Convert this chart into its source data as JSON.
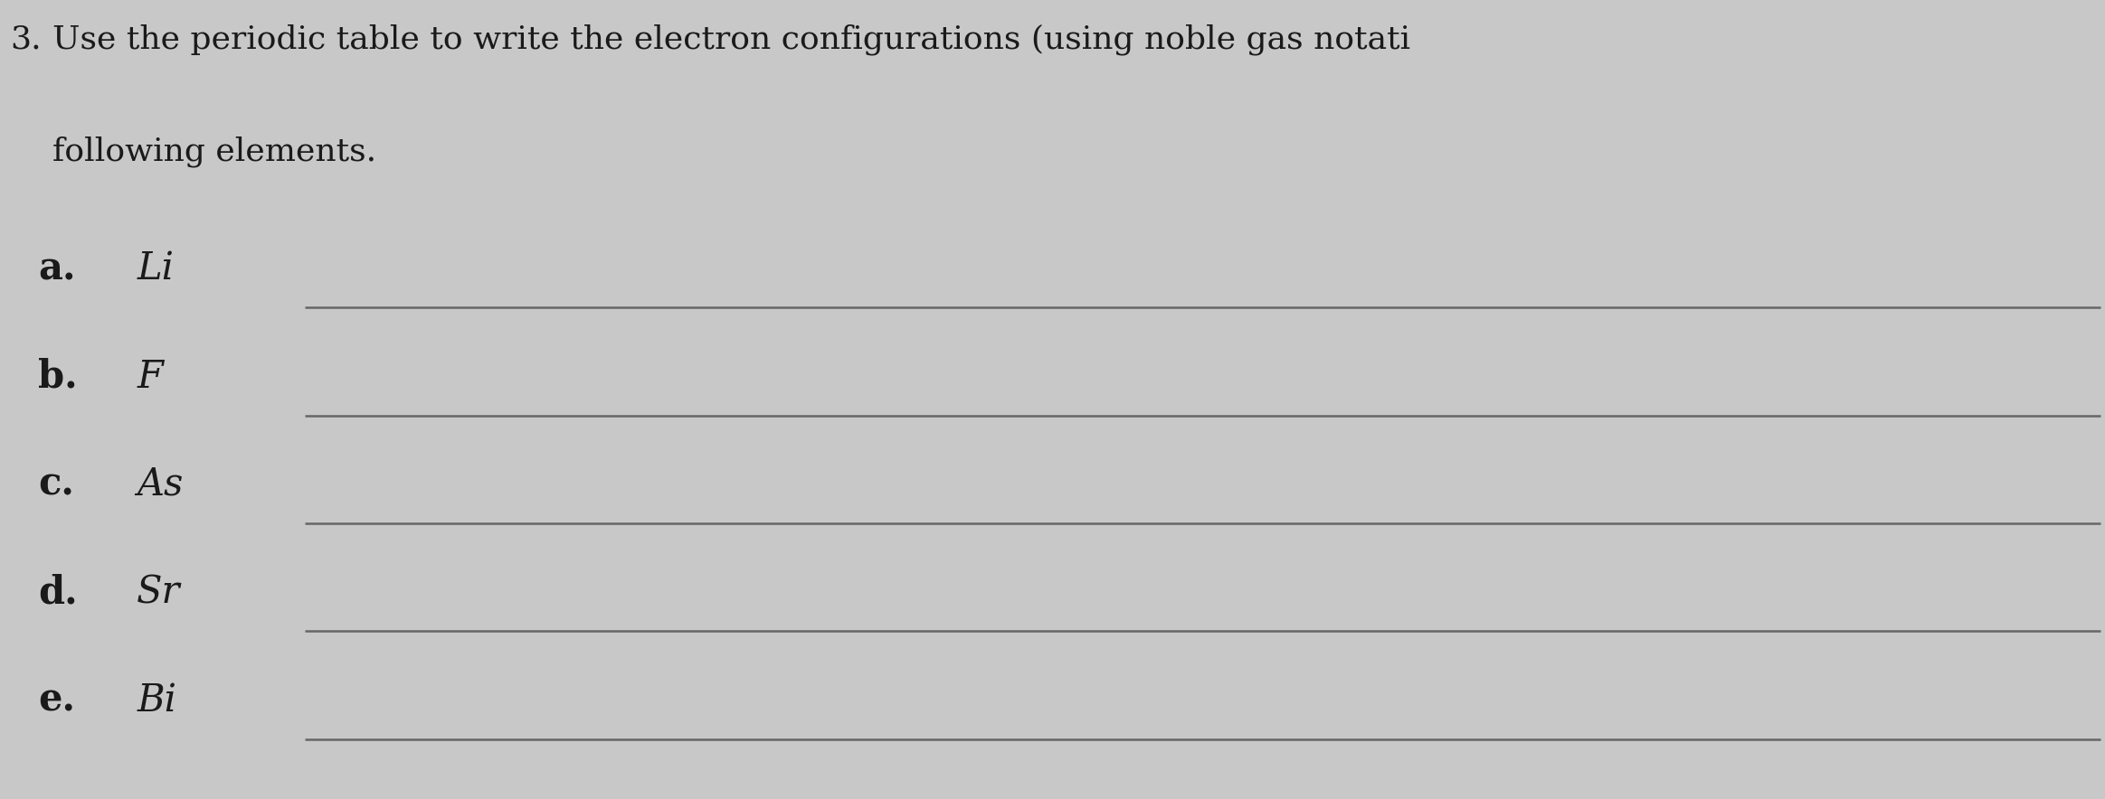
{
  "background_color": "#c8c8c8",
  "title_number": "3.",
  "title_text": "Use the periodic table to write the electron configurations (using noble gas notati",
  "title_text2": "following elements.",
  "items": [
    {
      "label": "a.",
      "element": "Li"
    },
    {
      "label": "b.",
      "element": "F"
    },
    {
      "label": "c.",
      "element": "As"
    },
    {
      "label": "d.",
      "element": "Sr"
    },
    {
      "label": "e.",
      "element": "Bi"
    }
  ],
  "line_color": "#666666",
  "text_color": "#1a1a1a",
  "title_fontsize": 26,
  "item_fontsize": 30,
  "figsize": [
    23.27,
    8.84
  ],
  "dpi": 100
}
